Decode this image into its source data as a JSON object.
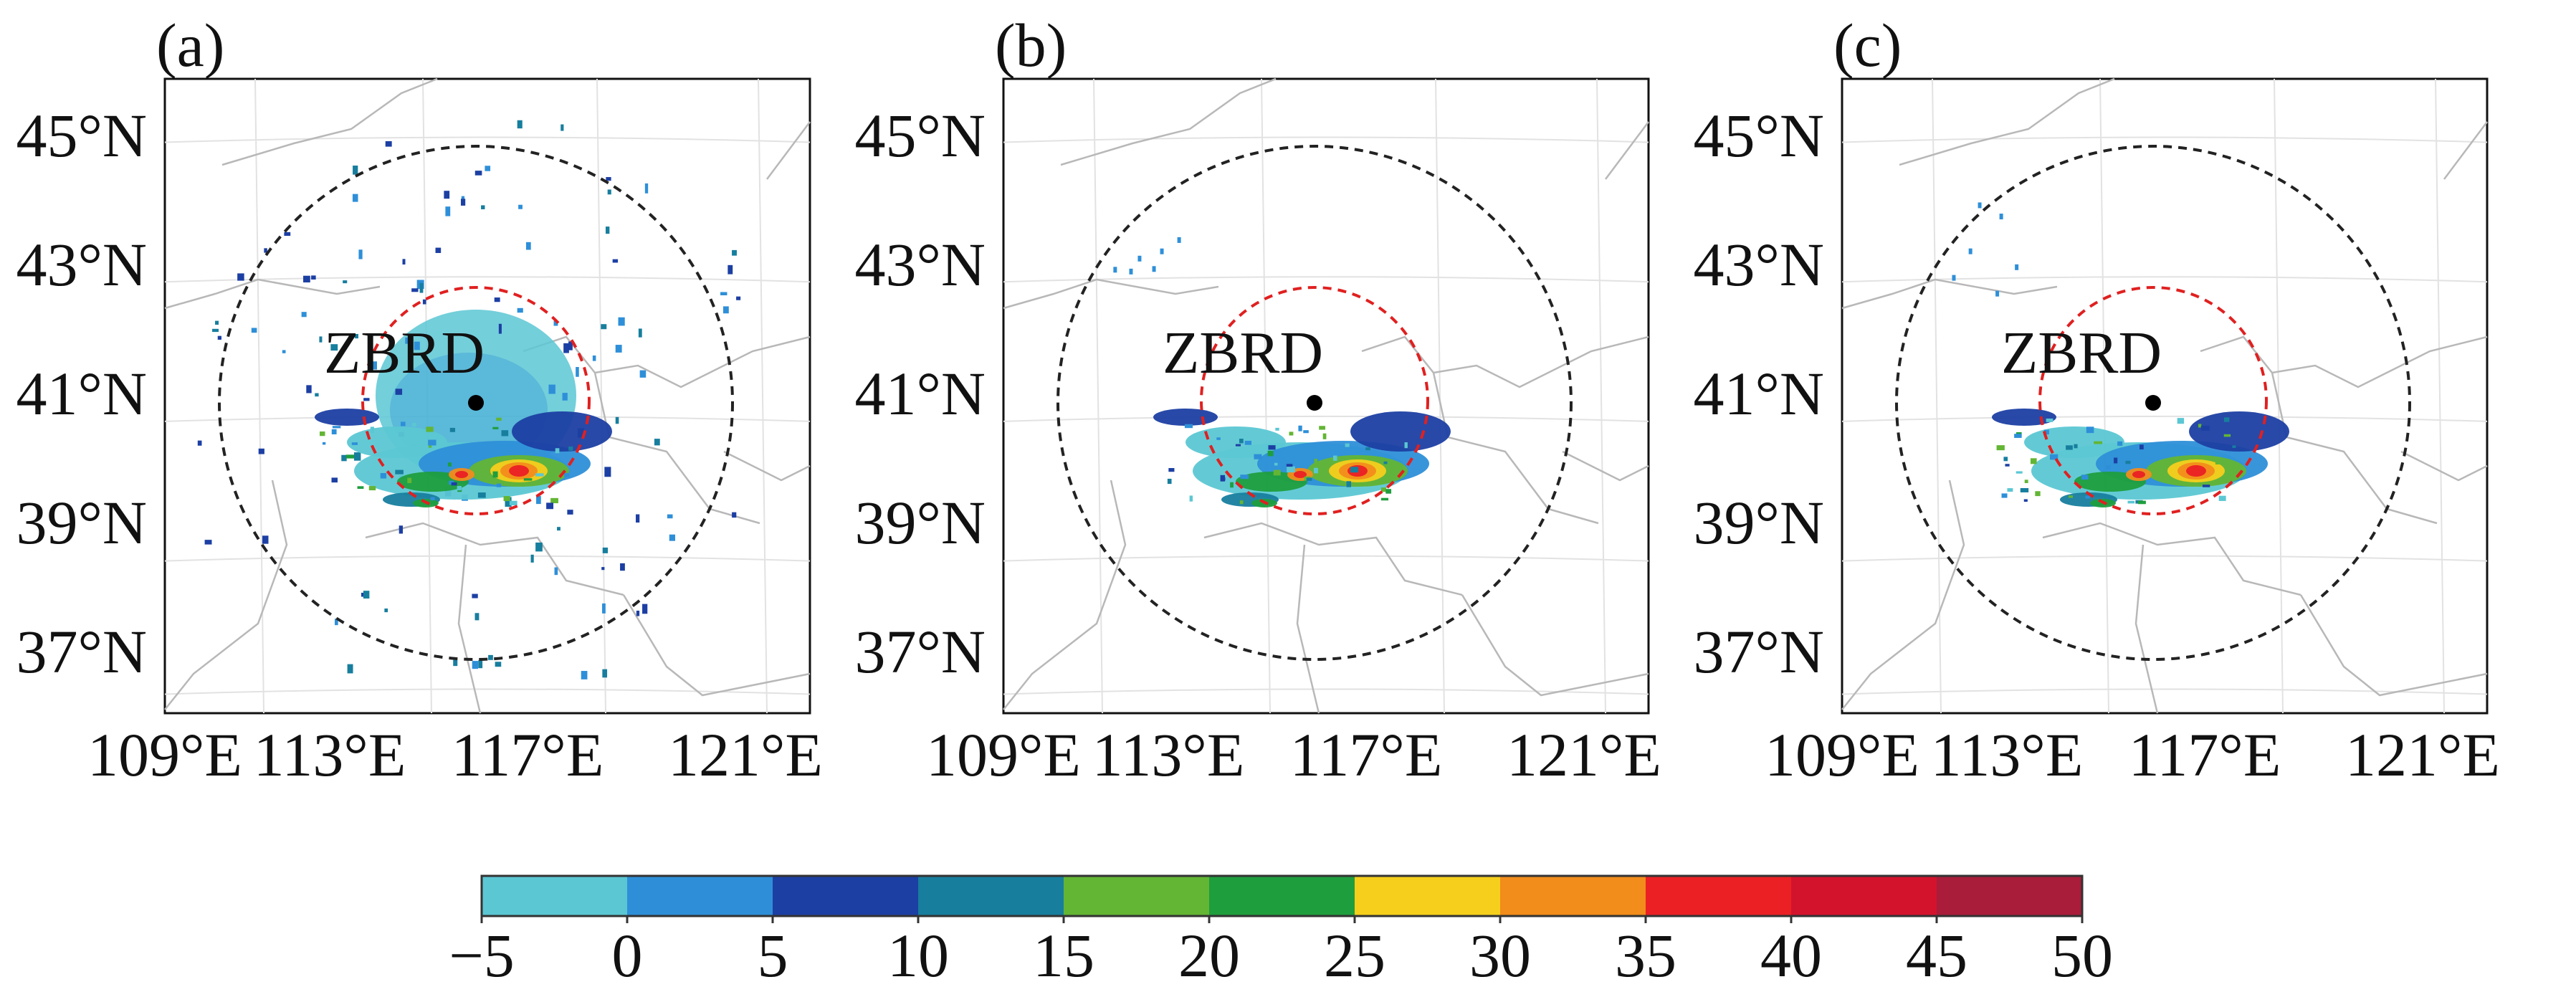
{
  "panels": [
    {
      "label": "(a)"
    },
    {
      "label": "(b)"
    },
    {
      "label": "(c)"
    }
  ],
  "station": {
    "name": "ZBRD"
  },
  "lat_labels": [
    "45°N",
    "43°N",
    "41°N",
    "39°N",
    "37°N"
  ],
  "lon_labels": [
    "109°E",
    "113°E",
    "117°E",
    "121°E"
  ],
  "colorbar": {
    "ticks": [
      "−5",
      "0",
      "5",
      "10",
      "15",
      "20",
      "25",
      "30",
      "35",
      "40",
      "45",
      "50"
    ],
    "colors": [
      "#5bc7d3",
      "#2e8fd8",
      "#1c3fa3",
      "#177e9e",
      "#63b534",
      "#1f9e3e",
      "#f5cf1c",
      "#f28c1b",
      "#ea2024",
      "#d3132c",
      "#a91c3a"
    ]
  },
  "colors": {
    "inner_ring": "#e02020",
    "outer_ring": "#222222"
  }
}
